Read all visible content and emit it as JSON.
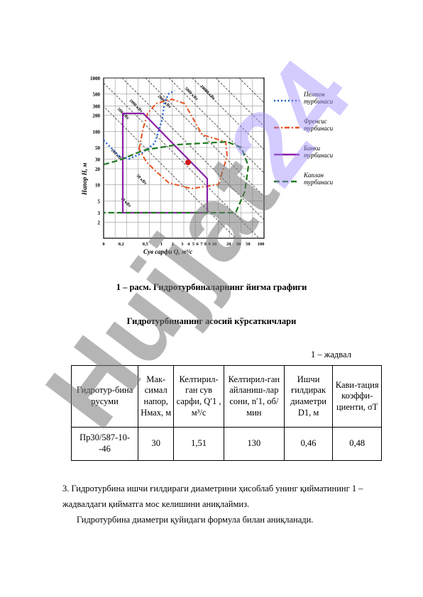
{
  "chart": {
    "y_axis_label": "Напор  Н,  м",
    "x_axis_label": "Сув сарфи  Q,  м³/с",
    "y_ticks": [
      "1000",
      "500",
      "300",
      "200",
      "100",
      "50",
      "30",
      "20",
      "10",
      "5",
      "3",
      "2"
    ],
    "x_ticks": [
      "0",
      "0,2",
      "0,5",
      "1",
      "2",
      "3",
      "4",
      "5",
      "6",
      "7",
      "8",
      "9",
      "10",
      "20",
      "30",
      "50",
      "100"
    ],
    "power_labels": [
      "10000 кВт",
      "5000 кВт",
      "2000 кВт",
      "1000 кВт",
      "500 кВт",
      "100 кВт",
      "50 кВт",
      "10 кВт"
    ],
    "legend": [
      {
        "label": "Пелтон турбинаси",
        "color": "#1f5fd0",
        "style": "dotted"
      },
      {
        "label": "Френсис турбинаси",
        "color": "#e8501e",
        "style": "dashdot"
      },
      {
        "label": "Банки турбинаси",
        "color": "#8a1fa8",
        "style": "solid"
      },
      {
        "label": "Каплан турбинаси",
        "color": "#1e7a1e",
        "style": "dashed"
      }
    ]
  },
  "figure_caption": "1 – расм. Гидротурбиналарнинг йиғма графиги",
  "table_heading": "Гидротурбинанинг асосий кўрсаткичлари",
  "table_number": "1 – жадвал",
  "table": {
    "headers": [
      "Гидротур-бина русуми",
      "Мак-симал напор, Hмах, м",
      "Келтирил-ган сув сарфи, Q′1 , м³/с",
      "Келтирил-ган айланиш-лар сони, n′1, об/мин",
      "Ишчи ғилдирак диаметри D1, м",
      "Кави-тация коэффи-циенти, σТ"
    ],
    "rows": [
      [
        "Пр30/587-10--46",
        "30",
        "1,51",
        "130",
        "0,46",
        "0,48"
      ]
    ]
  },
  "paragraph1": "3. Гидротурбина ишчи ғилдираги диаметрини ҳисоблаб унинг қийматининг 1 – жадвалдаги қийматга мос келишини аниқлаймиз.",
  "paragraph2": "Гидротурбина диаметри қуйидаги формула билан аниқланади.",
  "watermark": {
    "text_gray": "Hujjat",
    "text_purple": "24"
  }
}
